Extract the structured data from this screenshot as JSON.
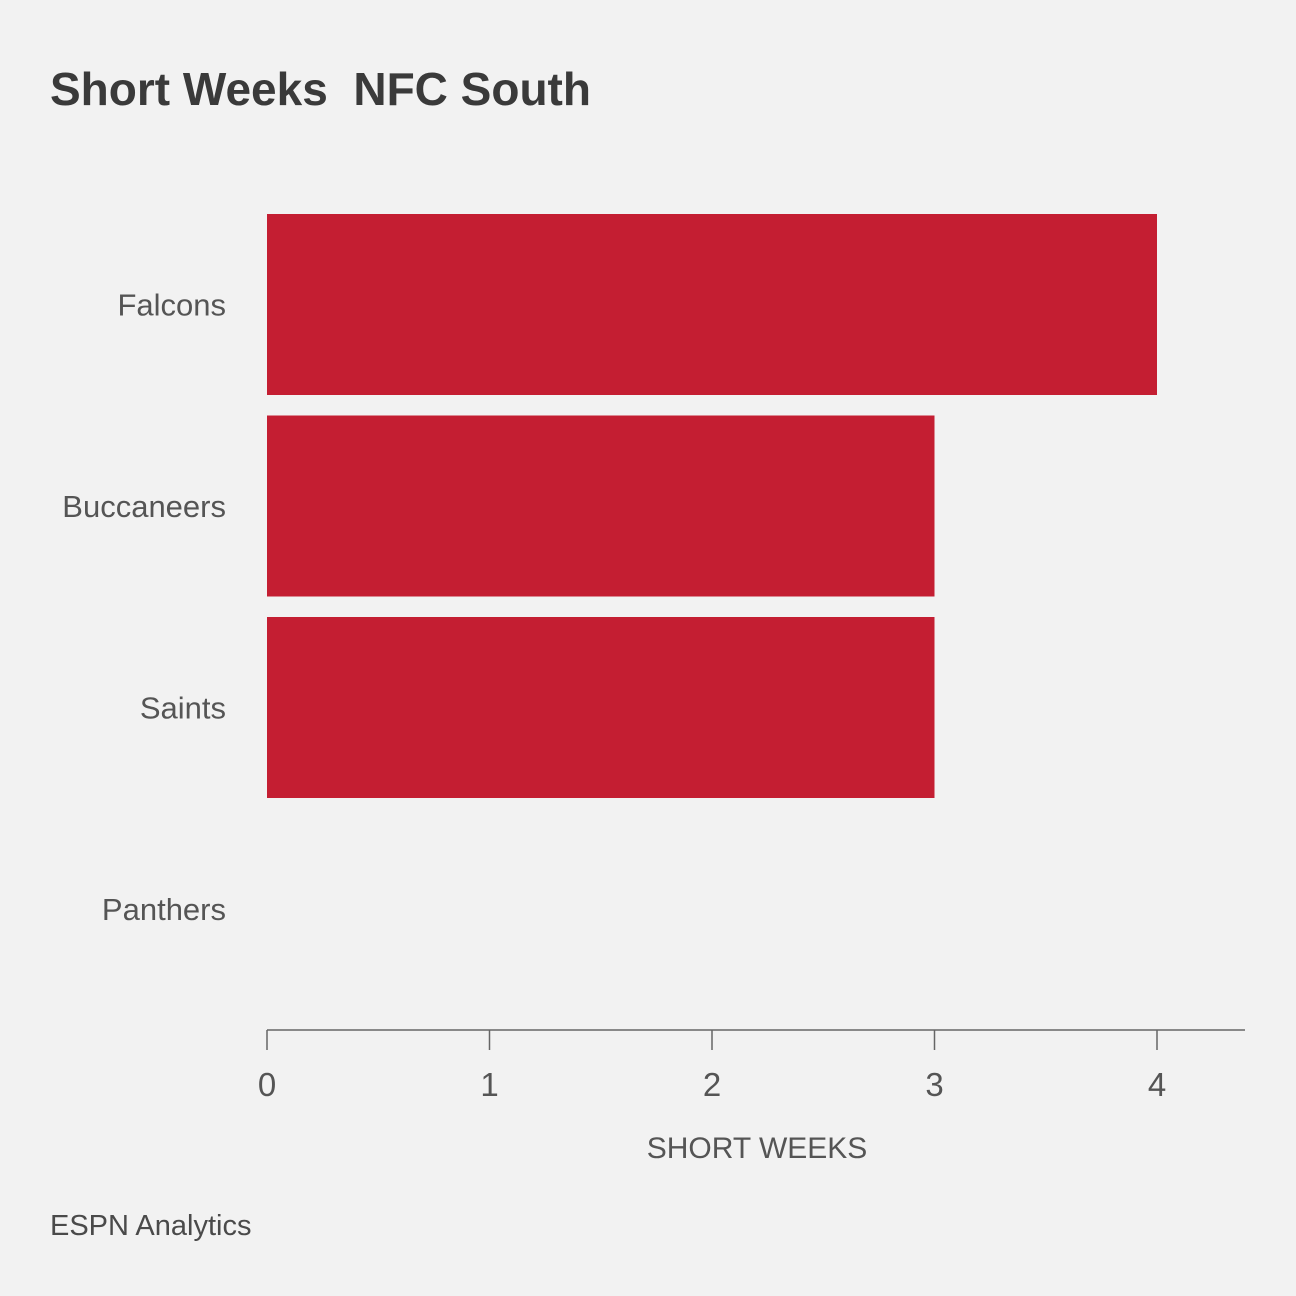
{
  "chart_data": {
    "type": "bar",
    "orientation": "horizontal",
    "title": "Short Weeks  NFC South",
    "categories": [
      "Falcons",
      "Buccaneers",
      "Saints",
      "Panthers"
    ],
    "values": [
      4,
      3,
      3,
      0
    ],
    "xlabel": "SHORT WEEKS",
    "ylabel": "",
    "xlim": [
      0,
      4.4
    ],
    "xticks": [
      "0",
      "1",
      "2",
      "3",
      "4"
    ],
    "grid": false,
    "legend": "none",
    "bar_color": "#c41e32",
    "source": "ESPN Analytics"
  }
}
